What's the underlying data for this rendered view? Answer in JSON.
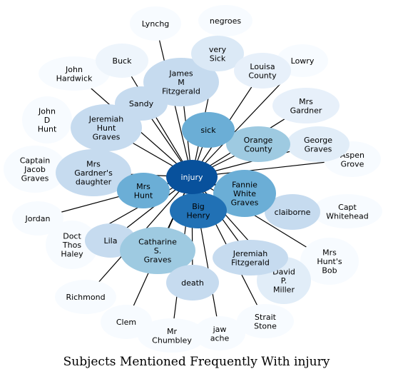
{
  "title": "Subjects Mentioned Frequently With injury",
  "center": {
    "id": "injury",
    "label": [
      "injury"
    ],
    "color": "#08519c",
    "text_color": "#ffffff"
  },
  "nodes": [
    {
      "id": "Lynchg",
      "label": [
        "Lynchg"
      ],
      "color": "#f7fbff",
      "edge": true
    },
    {
      "id": "negroes",
      "label": [
        "negroes"
      ],
      "color": "#f7fbff",
      "edge": false
    },
    {
      "id": "Buck",
      "label": [
        "Buck"
      ],
      "color": "#eef5fc",
      "edge": true
    },
    {
      "id": "very Sick",
      "label": [
        "very",
        "Sick"
      ],
      "color": "#dbe9f6",
      "edge": true
    },
    {
      "id": "Lowry",
      "label": [
        "Lowry"
      ],
      "color": "#f7fbff",
      "edge": true
    },
    {
      "id": "John Hardwick",
      "label": [
        "John",
        "Hardwick"
      ],
      "color": "#f7fbff",
      "edge": true
    },
    {
      "id": "James M Fitzgerald",
      "label": [
        "James",
        "M",
        "Fitzgerald"
      ],
      "color": "#c6dbef",
      "edge": true
    },
    {
      "id": "Louisa County",
      "label": [
        "Louisa",
        "County"
      ],
      "color": "#e7f0fa",
      "edge": true
    },
    {
      "id": "Sandy",
      "label": [
        "Sandy"
      ],
      "color": "#c6dbef",
      "edge": true
    },
    {
      "id": "John D Hunt",
      "label": [
        "John",
        "D",
        "Hunt"
      ],
      "color": "#f7fbff",
      "edge": false
    },
    {
      "id": "Mrs Gardner",
      "label": [
        "Mrs",
        "Gardner"
      ],
      "color": "#e7f0fa",
      "edge": true
    },
    {
      "id": "Jeremiah Hunt Graves",
      "label": [
        "Jeremiah",
        "Hunt",
        "Graves"
      ],
      "color": "#c6dbef",
      "edge": true
    },
    {
      "id": "sick",
      "label": [
        "sick"
      ],
      "color": "#6baed6",
      "edge": true
    },
    {
      "id": "Orange County",
      "label": [
        "Orange",
        "County"
      ],
      "color": "#9ecae1",
      "edge": true
    },
    {
      "id": "George Graves",
      "label": [
        "George",
        "Graves"
      ],
      "color": "#e1edf8",
      "edge": true
    },
    {
      "id": "Aspen Grove",
      "label": [
        "Aspen",
        "Grove"
      ],
      "color": "#f7fbff",
      "edge": true
    },
    {
      "id": "Captain Jacob Graves",
      "label": [
        "Captain",
        "Jacob",
        "Graves"
      ],
      "color": "#f7fbff",
      "edge": false
    },
    {
      "id": "Mrs Gardner's daughter",
      "label": [
        "Mrs",
        "Gardner's",
        "daughter"
      ],
      "color": "#c6dbef",
      "edge": true
    },
    {
      "id": "Mrs Hunt",
      "label": [
        "Mrs",
        "Hunt"
      ],
      "color": "#6baed6",
      "edge": true
    },
    {
      "id": "Fannie White Graves",
      "label": [
        "Fannie",
        "White",
        "Graves"
      ],
      "color": "#6baed6",
      "edge": true
    },
    {
      "id": "Big Henry",
      "label": [
        "Big",
        "Henry"
      ],
      "color": "#2171b5",
      "edge": true
    },
    {
      "id": "claiborne",
      "label": [
        "claiborne"
      ],
      "color": "#c6dbef",
      "edge": true
    },
    {
      "id": "Capt Whitehead",
      "label": [
        "Capt",
        "Whitehead"
      ],
      "color": "#f7fbff",
      "edge": false
    },
    {
      "id": "Jordan",
      "label": [
        "Jordan"
      ],
      "color": "#f7fbff",
      "edge": true
    },
    {
      "id": "Doct Thos Haley",
      "label": [
        "Doct",
        "Thos",
        "Haley"
      ],
      "color": "#f7fbff",
      "edge": true
    },
    {
      "id": "Lila",
      "label": [
        "Lila"
      ],
      "color": "#c6dbef",
      "edge": true
    },
    {
      "id": "Catharine S. Graves",
      "label": [
        "Catharine",
        "S.",
        "Graves"
      ],
      "color": "#9ecae1",
      "edge": true
    },
    {
      "id": "Jeremiah Fitzgerald",
      "label": [
        "Jeremiah",
        "Fitzgerald"
      ],
      "color": "#c6dbef",
      "edge": true
    },
    {
      "id": "Mrs Hunt's Bob",
      "label": [
        "Mrs",
        "Hunt's",
        "Bob"
      ],
      "color": "#f7fbff",
      "edge": true
    },
    {
      "id": "David P. Miller",
      "label": [
        "David",
        "P.",
        "Miller"
      ],
      "color": "#e1edf8",
      "edge": true
    },
    {
      "id": "death",
      "label": [
        "death"
      ],
      "color": "#c6dbef",
      "edge": true
    },
    {
      "id": "Richmond",
      "label": [
        "Richmond"
      ],
      "color": "#f7fbff",
      "edge": true
    },
    {
      "id": "Clem",
      "label": [
        "Clem"
      ],
      "color": "#f7fbff",
      "edge": true
    },
    {
      "id": "Strait Stone",
      "label": [
        "Strait",
        "Stone"
      ],
      "color": "#f7fbff",
      "edge": true
    },
    {
      "id": "Mr Chumbley",
      "label": [
        "Mr",
        "Chumbley"
      ],
      "color": "#f7fbff",
      "edge": true
    },
    {
      "id": "jaw ache",
      "label": [
        "jaw",
        "ache"
      ],
      "color": "#f7fbff",
      "edge": true
    }
  ]
}
